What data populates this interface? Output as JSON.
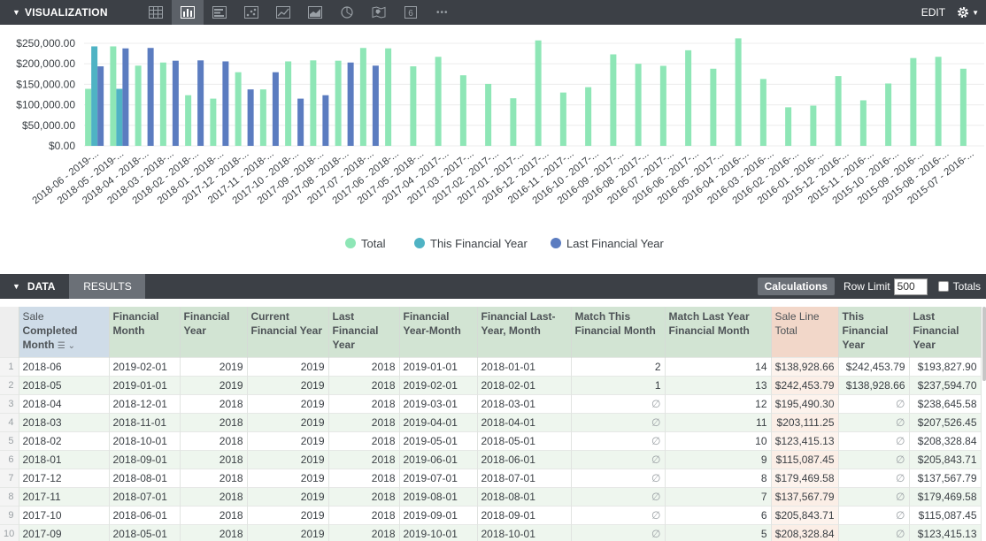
{
  "visualization": {
    "title": "VISUALIZATION",
    "edit_label": "EDIT",
    "tools": [
      {
        "name": "table-icon"
      },
      {
        "name": "column-chart-icon",
        "active": true
      },
      {
        "name": "bar-chart-icon"
      },
      {
        "name": "scatter-icon"
      },
      {
        "name": "line-chart-icon"
      },
      {
        "name": "area-chart-icon"
      },
      {
        "name": "pie-chart-icon"
      },
      {
        "name": "map-icon"
      },
      {
        "name": "single-value-icon"
      },
      {
        "name": "more-icon"
      }
    ],
    "single_value_glyph": "6",
    "more_glyph": "•••"
  },
  "chart_data": {
    "type": "bar",
    "title": "",
    "xlabel": "",
    "ylabel": "",
    "ylim": [
      0,
      265000
    ],
    "yticks": [
      0,
      50000,
      100000,
      150000,
      200000,
      250000
    ],
    "ytick_labels": [
      "$0.00",
      "$50,000.00",
      "$100,000.00",
      "$150,000.00",
      "$200,000.00",
      "$250,000.00"
    ],
    "categories": [
      "2018-06 - 2019-...",
      "2018-05 - 2019-...",
      "2018-04 - 2018-...",
      "2018-03 - 2018-...",
      "2018-02 - 2018-...",
      "2018-01 - 2018-...",
      "2017-12 - 2018-...",
      "2017-11 - 2018-...",
      "2017-10 - 2018-...",
      "2017-09 - 2018-...",
      "2017-08 - 2018-...",
      "2017-07 - 2018-...",
      "2017-06 - 2018-...",
      "2017-05 - 2018-...",
      "2017-04 - 2017-...",
      "2017-03 - 2017-...",
      "2017-02 - 2017-...",
      "2017-01 - 2017-...",
      "2016-12 - 2017-...",
      "2016-11 - 2017-...",
      "2016-10 - 2017-...",
      "2016-09 - 2017-...",
      "2016-08 - 2017-...",
      "2016-07 - 2017-...",
      "2016-06 - 2017-...",
      "2016-05 - 2017-...",
      "2016-04 - 2016-...",
      "2016-03 - 2016-...",
      "2016-02 - 2016-...",
      "2016-01 - 2016-...",
      "2015-12 - 2016-...",
      "2015-11 - 2016-...",
      "2015-10 - 2016-...",
      "2015-09 - 2016-...",
      "2015-08 - 2016-...",
      "2015-07 - 2016-..."
    ],
    "series": [
      {
        "name": "Total",
        "color": "#8ee6b6",
        "values": [
          138928.66,
          242453.79,
          195490.3,
          203111.25,
          123415.13,
          115087.45,
          179469.58,
          137567.79,
          205843.71,
          208328.84,
          207526.45,
          238645.58,
          237594.7,
          193827.9,
          217000,
          172000,
          151000,
          116000,
          257000,
          130000,
          143000,
          223000,
          200000,
          195000,
          233000,
          188000,
          262000,
          163000,
          94000,
          98000,
          170000,
          111000,
          152000,
          214000,
          217000,
          188000
        ]
      },
      {
        "name": "This Financial Year",
        "color": "#4fb3c4",
        "values": [
          242453.79,
          138928.66,
          null,
          null,
          null,
          null,
          null,
          null,
          null,
          null,
          null,
          null,
          null,
          null,
          null,
          null,
          null,
          null,
          null,
          null,
          null,
          null,
          null,
          null,
          null,
          null,
          null,
          null,
          null,
          null,
          null,
          null,
          null,
          null,
          null,
          null
        ]
      },
      {
        "name": "Last Financial Year",
        "color": "#5b7cc0",
        "values": [
          193827.9,
          237594.7,
          238645.58,
          207526.45,
          208328.84,
          205843.71,
          137567.79,
          179469.58,
          115087.45,
          123415.13,
          203111.25,
          195490.3,
          null,
          null,
          null,
          null,
          null,
          null,
          null,
          null,
          null,
          null,
          null,
          null,
          null,
          null,
          null,
          null,
          null,
          null,
          null,
          null,
          null,
          null,
          null,
          null
        ]
      }
    ],
    "legend": [
      "Total",
      "This Financial Year",
      "Last Financial Year"
    ],
    "legend_position": "bottom-center",
    "grid": true
  },
  "data_panel": {
    "title": "DATA",
    "results_tab": "RESULTS",
    "calculations_label": "Calculations",
    "row_limit_label": "Row Limit",
    "row_limit_value": "500",
    "totals_label": "Totals"
  },
  "table": {
    "headers": {
      "sale": "Sale",
      "completed_month": "Completed Month",
      "financial_month": "Financial Month",
      "financial_year": "Financial Year",
      "current_financial_year": "Current Financial Year",
      "last_financial_year": "Last Financial Year",
      "financial_year_month": "Financial Year-Month",
      "financial_last_year_month": "Financial Last-Year, Month",
      "match_this": "Match This Financial Month",
      "match_last": "Match Last Year Financial Month",
      "sale_line_total": "Sale Line Total",
      "this_financial_year": "This Financial Year",
      "last_financial_year_measure": "Last Financial Year"
    },
    "null_glyph": "∅",
    "rows": [
      {
        "n": "1",
        "month": "2018-06",
        "fin_month": "2019-02-01",
        "fin_year": "2019",
        "cur_fy": "2019",
        "last_fy": "2018",
        "fy_month": "2019-01-01",
        "fly_month": "2018-01-01",
        "match_this": "2",
        "match_last": "14",
        "total": "$138,928.66",
        "this_fy": "$242,453.79",
        "last_fy_m": "$193,827.90"
      },
      {
        "n": "2",
        "month": "2018-05",
        "fin_month": "2019-01-01",
        "fin_year": "2019",
        "cur_fy": "2019",
        "last_fy": "2018",
        "fy_month": "2019-02-01",
        "fly_month": "2018-02-01",
        "match_this": "1",
        "match_last": "13",
        "total": "$242,453.79",
        "this_fy": "$138,928.66",
        "last_fy_m": "$237,594.70"
      },
      {
        "n": "3",
        "month": "2018-04",
        "fin_month": "2018-12-01",
        "fin_year": "2018",
        "cur_fy": "2019",
        "last_fy": "2018",
        "fy_month": "2019-03-01",
        "fly_month": "2018-03-01",
        "match_this": "∅",
        "match_last": "12",
        "total": "$195,490.30",
        "this_fy": "∅",
        "last_fy_m": "$238,645.58"
      },
      {
        "n": "4",
        "month": "2018-03",
        "fin_month": "2018-11-01",
        "fin_year": "2018",
        "cur_fy": "2019",
        "last_fy": "2018",
        "fy_month": "2019-04-01",
        "fly_month": "2018-04-01",
        "match_this": "∅",
        "match_last": "11",
        "total": "$203,111.25",
        "this_fy": "∅",
        "last_fy_m": "$207,526.45"
      },
      {
        "n": "5",
        "month": "2018-02",
        "fin_month": "2018-10-01",
        "fin_year": "2018",
        "cur_fy": "2019",
        "last_fy": "2018",
        "fy_month": "2019-05-01",
        "fly_month": "2018-05-01",
        "match_this": "∅",
        "match_last": "10",
        "total": "$123,415.13",
        "this_fy": "∅",
        "last_fy_m": "$208,328.84"
      },
      {
        "n": "6",
        "month": "2018-01",
        "fin_month": "2018-09-01",
        "fin_year": "2018",
        "cur_fy": "2019",
        "last_fy": "2018",
        "fy_month": "2019-06-01",
        "fly_month": "2018-06-01",
        "match_this": "∅",
        "match_last": "9",
        "total": "$115,087.45",
        "this_fy": "∅",
        "last_fy_m": "$205,843.71"
      },
      {
        "n": "7",
        "month": "2017-12",
        "fin_month": "2018-08-01",
        "fin_year": "2018",
        "cur_fy": "2019",
        "last_fy": "2018",
        "fy_month": "2019-07-01",
        "fly_month": "2018-07-01",
        "match_this": "∅",
        "match_last": "8",
        "total": "$179,469.58",
        "this_fy": "∅",
        "last_fy_m": "$137,567.79"
      },
      {
        "n": "8",
        "month": "2017-11",
        "fin_month": "2018-07-01",
        "fin_year": "2018",
        "cur_fy": "2019",
        "last_fy": "2018",
        "fy_month": "2019-08-01",
        "fly_month": "2018-08-01",
        "match_this": "∅",
        "match_last": "7",
        "total": "$137,567.79",
        "this_fy": "∅",
        "last_fy_m": "$179,469.58"
      },
      {
        "n": "9",
        "month": "2017-10",
        "fin_month": "2018-06-01",
        "fin_year": "2018",
        "cur_fy": "2019",
        "last_fy": "2018",
        "fy_month": "2019-09-01",
        "fly_month": "2018-09-01",
        "match_this": "∅",
        "match_last": "6",
        "total": "$205,843.71",
        "this_fy": "∅",
        "last_fy_m": "$115,087.45"
      },
      {
        "n": "10",
        "month": "2017-09",
        "fin_month": "2018-05-01",
        "fin_year": "2018",
        "cur_fy": "2019",
        "last_fy": "2018",
        "fy_month": "2019-10-01",
        "fly_month": "2018-10-01",
        "match_this": "∅",
        "match_last": "5",
        "total": "$208,328.84",
        "this_fy": "∅",
        "last_fy_m": "$123,415.13"
      }
    ]
  }
}
